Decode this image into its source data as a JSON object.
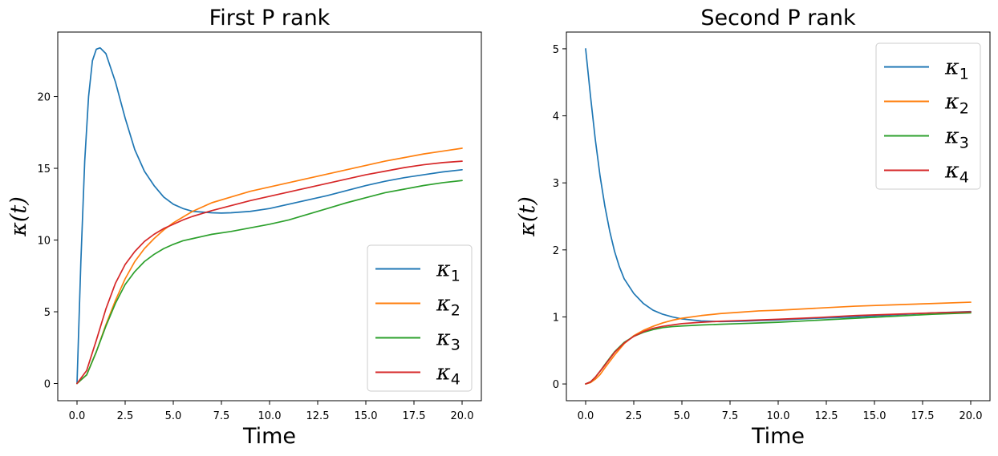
{
  "chart_data": [
    {
      "type": "line",
      "title": "First P rank",
      "xlabel": "Time",
      "ylabel": "κ(t)",
      "xlim": [
        -1.0,
        21.0
      ],
      "ylim": [
        -1.2,
        24.5
      ],
      "xticks": [
        0.0,
        2.5,
        5.0,
        7.5,
        10.0,
        12.5,
        15.0,
        17.5,
        20.0
      ],
      "xtick_labels": [
        "0.0",
        "2.5",
        "5.0",
        "7.5",
        "10.0",
        "12.5",
        "15.0",
        "17.5",
        "20.0"
      ],
      "yticks": [
        0,
        5,
        10,
        15,
        20
      ],
      "ytick_labels": [
        "0",
        "5",
        "10",
        "15",
        "20"
      ],
      "grid": false,
      "legend_position": "lower-right",
      "series": [
        {
          "name": "κ",
          "subscript": "1",
          "color": "#1f77b4",
          "x": [
            0,
            0.2,
            0.4,
            0.6,
            0.8,
            1.0,
            1.2,
            1.5,
            2.0,
            2.5,
            3.0,
            3.5,
            4.0,
            4.5,
            5.0,
            5.5,
            6.0,
            6.5,
            7.0,
            7.5,
            8.0,
            9.0,
            10.0,
            11.0,
            12.0,
            13.0,
            14.0,
            15.0,
            16.0,
            17.0,
            18.0,
            19.0,
            20.0
          ],
          "y": [
            0,
            8.5,
            15.5,
            20.0,
            22.5,
            23.3,
            23.4,
            23.0,
            21.0,
            18.5,
            16.3,
            14.8,
            13.8,
            13.0,
            12.5,
            12.2,
            12.0,
            11.95,
            11.9,
            11.88,
            11.9,
            12.0,
            12.2,
            12.5,
            12.8,
            13.1,
            13.45,
            13.8,
            14.1,
            14.35,
            14.55,
            14.75,
            14.9
          ]
        },
        {
          "name": "κ",
          "subscript": "2",
          "color": "#ff7f0e",
          "x": [
            0,
            0.5,
            1.0,
            1.5,
            2.0,
            2.5,
            3.0,
            3.5,
            4.0,
            4.5,
            5.0,
            5.5,
            6.0,
            6.5,
            7.0,
            8.0,
            9.0,
            10.0,
            11.0,
            12.0,
            13.0,
            14.0,
            15.0,
            16.0,
            17.0,
            18.0,
            19.0,
            20.0
          ],
          "y": [
            0,
            0.6,
            2.2,
            4.1,
            5.8,
            7.3,
            8.5,
            9.4,
            10.1,
            10.7,
            11.2,
            11.6,
            12.0,
            12.3,
            12.6,
            13.0,
            13.4,
            13.7,
            14.0,
            14.3,
            14.6,
            14.9,
            15.2,
            15.5,
            15.75,
            16.0,
            16.2,
            16.4
          ]
        },
        {
          "name": "κ",
          "subscript": "3",
          "color": "#2ca02c",
          "x": [
            0,
            0.5,
            1.0,
            1.5,
            2.0,
            2.5,
            3.0,
            3.5,
            4.0,
            4.5,
            5.0,
            5.5,
            6.0,
            6.5,
            7.0,
            8.0,
            9.0,
            10.0,
            11.0,
            12.0,
            13.0,
            14.0,
            15.0,
            16.0,
            17.0,
            18.0,
            19.0,
            20.0
          ],
          "y": [
            0,
            0.6,
            2.2,
            4.0,
            5.6,
            6.9,
            7.8,
            8.5,
            9.0,
            9.4,
            9.7,
            9.95,
            10.1,
            10.25,
            10.4,
            10.6,
            10.85,
            11.1,
            11.4,
            11.8,
            12.2,
            12.6,
            12.95,
            13.3,
            13.55,
            13.8,
            14.0,
            14.15
          ]
        },
        {
          "name": "κ",
          "subscript": "4",
          "color": "#d62728",
          "x": [
            0,
            0.5,
            1.0,
            1.5,
            2.0,
            2.5,
            3.0,
            3.5,
            4.0,
            4.5,
            5.0,
            5.5,
            6.0,
            6.5,
            7.0,
            8.0,
            9.0,
            10.0,
            11.0,
            12.0,
            13.0,
            14.0,
            15.0,
            16.0,
            17.0,
            18.0,
            19.0,
            20.0
          ],
          "y": [
            0,
            0.9,
            3.0,
            5.2,
            7.0,
            8.3,
            9.2,
            9.9,
            10.4,
            10.8,
            11.1,
            11.4,
            11.65,
            11.85,
            12.05,
            12.4,
            12.75,
            13.05,
            13.35,
            13.65,
            13.95,
            14.25,
            14.55,
            14.8,
            15.05,
            15.25,
            15.4,
            15.5
          ]
        }
      ]
    },
    {
      "type": "line",
      "title": "Second P rank",
      "xlabel": "Time",
      "ylabel": "κ(t)",
      "xlim": [
        -1.0,
        21.0
      ],
      "ylim": [
        -0.25,
        5.25
      ],
      "xticks": [
        0.0,
        2.5,
        5.0,
        7.5,
        10.0,
        12.5,
        15.0,
        17.5,
        20.0
      ],
      "xtick_labels": [
        "0.0",
        "2.5",
        "5.0",
        "7.5",
        "10.0",
        "12.5",
        "15.0",
        "17.5",
        "20.0"
      ],
      "yticks": [
        0,
        1,
        2,
        3,
        4,
        5
      ],
      "ytick_labels": [
        "0",
        "1",
        "2",
        "3",
        "4",
        "5"
      ],
      "grid": false,
      "legend_position": "top-right",
      "series": [
        {
          "name": "κ",
          "subscript": "1",
          "color": "#1f77b4",
          "x": [
            0,
            0.25,
            0.5,
            0.75,
            1.0,
            1.25,
            1.5,
            1.75,
            2.0,
            2.5,
            3.0,
            3.5,
            4.0,
            4.5,
            5.0,
            6.0,
            7.0,
            8.0,
            9.0,
            10.0,
            12.0,
            14.0,
            16.0,
            18.0,
            20.0
          ],
          "y": [
            5.0,
            4.3,
            3.65,
            3.1,
            2.65,
            2.28,
            1.98,
            1.75,
            1.57,
            1.35,
            1.2,
            1.1,
            1.04,
            1.0,
            0.97,
            0.94,
            0.93,
            0.935,
            0.945,
            0.955,
            0.98,
            1.0,
            1.03,
            1.06,
            1.08
          ]
        },
        {
          "name": "κ",
          "subscript": "2",
          "color": "#ff7f0e",
          "x": [
            0,
            0.25,
            0.5,
            0.75,
            1.0,
            1.5,
            2.0,
            2.5,
            3.0,
            3.5,
            4.0,
            4.5,
            5.0,
            6.0,
            7.0,
            8.0,
            9.0,
            10.0,
            12.0,
            14.0,
            16.0,
            18.0,
            20.0
          ],
          "y": [
            0,
            0.02,
            0.07,
            0.14,
            0.24,
            0.43,
            0.6,
            0.72,
            0.8,
            0.86,
            0.91,
            0.95,
            0.98,
            1.02,
            1.05,
            1.07,
            1.09,
            1.1,
            1.13,
            1.16,
            1.18,
            1.2,
            1.22
          ]
        },
        {
          "name": "κ",
          "subscript": "3",
          "color": "#2ca02c",
          "x": [
            0,
            0.25,
            0.5,
            0.75,
            1.0,
            1.5,
            2.0,
            2.5,
            3.0,
            3.5,
            4.0,
            4.5,
            5.0,
            6.0,
            7.0,
            8.0,
            9.0,
            10.0,
            12.0,
            14.0,
            16.0,
            18.0,
            20.0
          ],
          "y": [
            0,
            0.03,
            0.1,
            0.19,
            0.29,
            0.48,
            0.62,
            0.71,
            0.77,
            0.81,
            0.84,
            0.855,
            0.865,
            0.88,
            0.89,
            0.9,
            0.91,
            0.92,
            0.95,
            0.98,
            1.01,
            1.04,
            1.06
          ]
        },
        {
          "name": "κ",
          "subscript": "4",
          "color": "#d62728",
          "x": [
            0,
            0.25,
            0.5,
            0.75,
            1.0,
            1.5,
            2.0,
            2.5,
            3.0,
            3.5,
            4.0,
            4.5,
            5.0,
            6.0,
            7.0,
            8.0,
            9.0,
            10.0,
            12.0,
            14.0,
            16.0,
            18.0,
            20.0
          ],
          "y": [
            0,
            0.03,
            0.1,
            0.19,
            0.28,
            0.47,
            0.61,
            0.71,
            0.78,
            0.83,
            0.86,
            0.88,
            0.9,
            0.92,
            0.935,
            0.945,
            0.955,
            0.965,
            0.99,
            1.02,
            1.04,
            1.06,
            1.075
          ]
        }
      ]
    }
  ]
}
